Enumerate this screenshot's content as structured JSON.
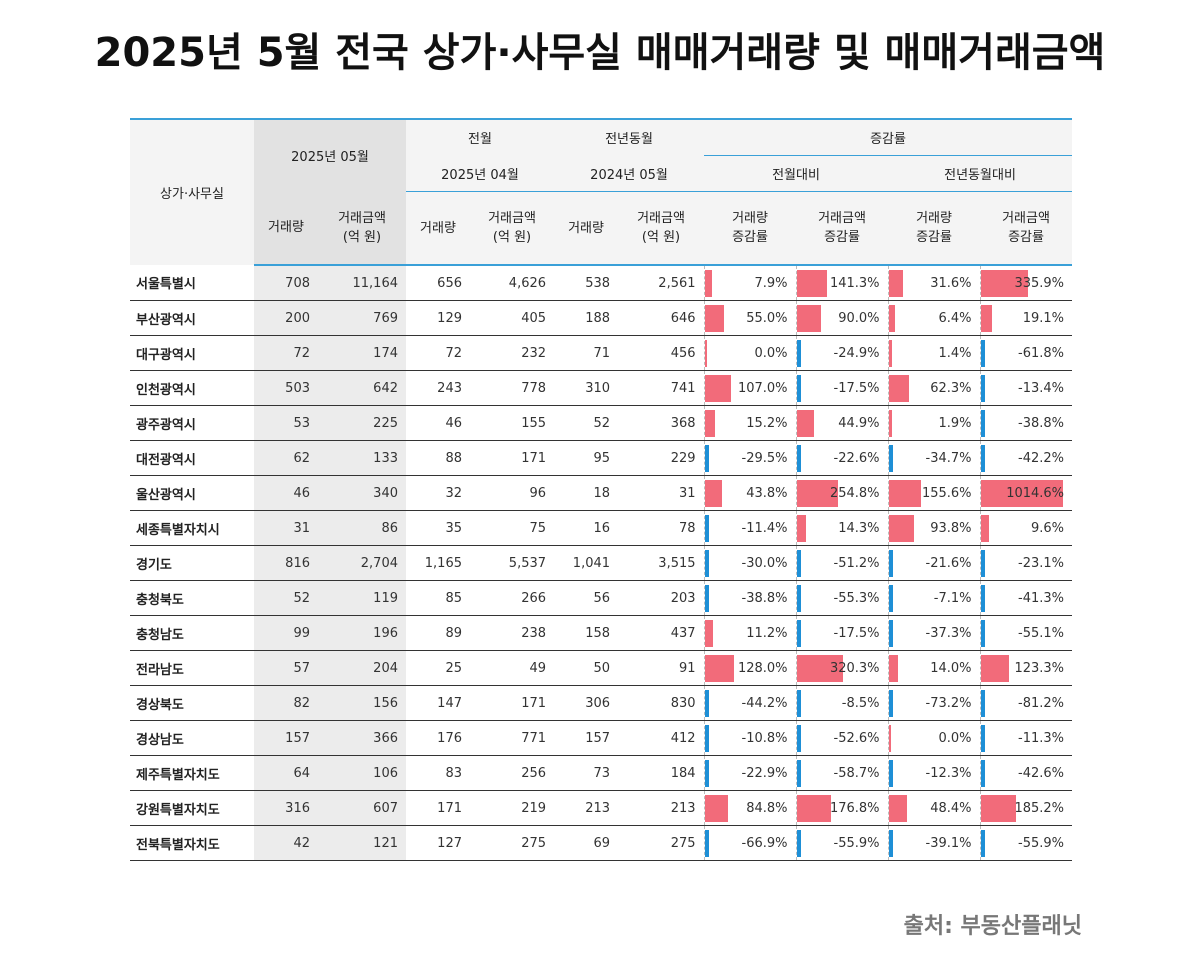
{
  "title": "2025년 5월 전국 상가·사무실 매매거래량 및 매매거래금액",
  "source": "출처: 부동산플래닛",
  "table": {
    "headers": {
      "region": "상가·사무실",
      "current": "2025년 05월",
      "prev_month": "전월",
      "prev_month_date": "2025년 04월",
      "prev_year": "전년동월",
      "prev_year_date": "2024년 05월",
      "change": "증감률",
      "mom": "전월대비",
      "yoy": "전년동월대비",
      "volume": "거래량",
      "amount_l1": "거래금액",
      "amount_l2": "(억 원)",
      "vol_chg_l1": "거래량",
      "vol_chg_l2": "증감률",
      "amt_chg_l1": "거래금액",
      "amt_chg_l2": "증감률"
    },
    "colors": {
      "positive": "#f26b7a",
      "negative": "#1e8fd6",
      "accent": "#3aa0d8"
    }
  },
  "chart_data": {
    "type": "table",
    "columns": [
      "상가·사무실",
      "2025년 05월 거래량",
      "2025년 05월 거래금액 (억 원)",
      "2025년 04월 거래량",
      "2025년 04월 거래금액 (억 원)",
      "2024년 05월 거래량",
      "2024년 05월 거래금액 (억 원)",
      "전월대비 거래량 증감률",
      "전월대비 거래금액 증감률",
      "전년동월대비 거래량 증감률",
      "전년동월대비 거래금액 증감률"
    ],
    "rows": [
      {
        "region": "서울특별시",
        "v25": "708",
        "a25": "11,164",
        "v2504": "656",
        "a2504": "4,626",
        "v24": "538",
        "a24": "2,561",
        "mv": "7.9%",
        "ma": "141.3%",
        "yv": "31.6%",
        "ya": "335.9%"
      },
      {
        "region": "부산광역시",
        "v25": "200",
        "a25": "769",
        "v2504": "129",
        "a2504": "405",
        "v24": "188",
        "a24": "646",
        "mv": "55.0%",
        "ma": "90.0%",
        "yv": "6.4%",
        "ya": "19.1%"
      },
      {
        "region": "대구광역시",
        "v25": "72",
        "a25": "174",
        "v2504": "72",
        "a2504": "232",
        "v24": "71",
        "a24": "456",
        "mv": "0.0%",
        "ma": "-24.9%",
        "yv": "1.4%",
        "ya": "-61.8%"
      },
      {
        "region": "인천광역시",
        "v25": "503",
        "a25": "642",
        "v2504": "243",
        "a2504": "778",
        "v24": "310",
        "a24": "741",
        "mv": "107.0%",
        "ma": "-17.5%",
        "yv": "62.3%",
        "ya": "-13.4%"
      },
      {
        "region": "광주광역시",
        "v25": "53",
        "a25": "225",
        "v2504": "46",
        "a2504": "155",
        "v24": "52",
        "a24": "368",
        "mv": "15.2%",
        "ma": "44.9%",
        "yv": "1.9%",
        "ya": "-38.8%"
      },
      {
        "region": "대전광역시",
        "v25": "62",
        "a25": "133",
        "v2504": "88",
        "a2504": "171",
        "v24": "95",
        "a24": "229",
        "mv": "-29.5%",
        "ma": "-22.6%",
        "yv": "-34.7%",
        "ya": "-42.2%"
      },
      {
        "region": "울산광역시",
        "v25": "46",
        "a25": "340",
        "v2504": "32",
        "a2504": "96",
        "v24": "18",
        "a24": "31",
        "mv": "43.8%",
        "ma": "254.8%",
        "yv": "155.6%",
        "ya": "1014.6%"
      },
      {
        "region": "세종특별자치시",
        "v25": "31",
        "a25": "86",
        "v2504": "35",
        "a2504": "75",
        "v24": "16",
        "a24": "78",
        "mv": "-11.4%",
        "ma": "14.3%",
        "yv": "93.8%",
        "ya": "9.6%"
      },
      {
        "region": "경기도",
        "v25": "816",
        "a25": "2,704",
        "v2504": "1,165",
        "a2504": "5,537",
        "v24": "1,041",
        "a24": "3,515",
        "mv": "-30.0%",
        "ma": "-51.2%",
        "yv": "-21.6%",
        "ya": "-23.1%"
      },
      {
        "region": "충청북도",
        "v25": "52",
        "a25": "119",
        "v2504": "85",
        "a2504": "266",
        "v24": "56",
        "a24": "203",
        "mv": "-38.8%",
        "ma": "-55.3%",
        "yv": "-7.1%",
        "ya": "-41.3%"
      },
      {
        "region": "충청남도",
        "v25": "99",
        "a25": "196",
        "v2504": "89",
        "a2504": "238",
        "v24": "158",
        "a24": "437",
        "mv": "11.2%",
        "ma": "-17.5%",
        "yv": "-37.3%",
        "ya": "-55.1%"
      },
      {
        "region": "전라남도",
        "v25": "57",
        "a25": "204",
        "v2504": "25",
        "a2504": "49",
        "v24": "50",
        "a24": "91",
        "mv": "128.0%",
        "ma": "320.3%",
        "yv": "14.0%",
        "ya": "123.3%"
      },
      {
        "region": "경상북도",
        "v25": "82",
        "a25": "156",
        "v2504": "147",
        "a2504": "171",
        "v24": "306",
        "a24": "830",
        "mv": "-44.2%",
        "ma": "-8.5%",
        "yv": "-73.2%",
        "ya": "-81.2%"
      },
      {
        "region": "경상남도",
        "v25": "157",
        "a25": "366",
        "v2504": "176",
        "a2504": "771",
        "v24": "157",
        "a24": "412",
        "mv": "-10.8%",
        "ma": "-52.6%",
        "yv": "0.0%",
        "ya": "-11.3%"
      },
      {
        "region": "제주특별자치도",
        "v25": "64",
        "a25": "106",
        "v2504": "83",
        "a2504": "256",
        "v24": "73",
        "a24": "184",
        "mv": "-22.9%",
        "ma": "-58.7%",
        "yv": "-12.3%",
        "ya": "-42.6%"
      },
      {
        "region": "강원특별자치도",
        "v25": "316",
        "a25": "607",
        "v2504": "171",
        "a2504": "219",
        "v24": "213",
        "a24": "213",
        "mv": "84.8%",
        "ma": "176.8%",
        "yv": "48.4%",
        "ya": "185.2%"
      },
      {
        "region": "전북특별자치도",
        "v25": "42",
        "a25": "121",
        "v2504": "127",
        "a2504": "275",
        "v24": "69",
        "a24": "275",
        "mv": "-66.9%",
        "ma": "-55.9%",
        "yv": "-39.1%",
        "ya": "-55.9%"
      }
    ]
  }
}
